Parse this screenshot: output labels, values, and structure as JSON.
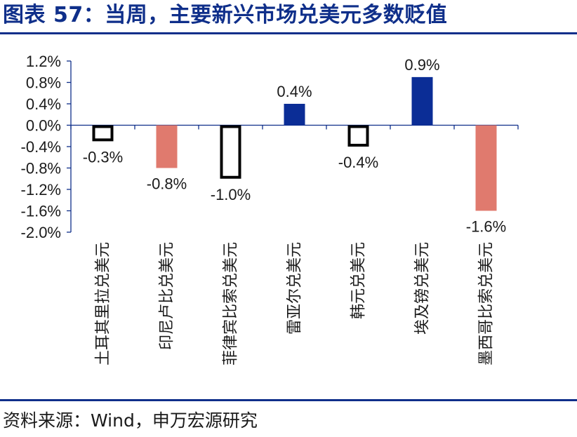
{
  "header": {
    "title": "图表 57：当周，主要新兴市场兑美元多数贬值"
  },
  "footer": {
    "source": "资料来源：Wind，申万宏源研究"
  },
  "chart_data": {
    "type": "bar",
    "title": "当周，主要新兴市场兑美元多数贬值",
    "xlabel": "",
    "ylabel": "",
    "ylim": [
      -2.0,
      1.2
    ],
    "yticks": [
      1.2,
      0.8,
      0.4,
      0.0,
      -0.4,
      -0.8,
      -1.2,
      -1.6,
      -2.0
    ],
    "ytick_labels": [
      "1.2%",
      "0.8%",
      "0.4%",
      "0.0%",
      "-0.4%",
      "-0.8%",
      "-1.2%",
      "-1.6%",
      "-2.0%"
    ],
    "grid": false,
    "legend": "none",
    "categories": [
      "土耳其里拉兑美元",
      "印尼卢比兑美元",
      "菲律宾比索兑美元",
      "雷亚尔兑美元",
      "韩元兑美元",
      "埃及镑兑美元",
      "墨西哥比索兑美元"
    ],
    "values": [
      -0.3,
      -0.8,
      -1.0,
      0.4,
      -0.4,
      0.9,
      -1.6
    ],
    "data_labels": [
      "-0.3%",
      "-0.8%",
      "-1.0%",
      "0.4%",
      "-0.4%",
      "0.9%",
      "-1.6%"
    ],
    "bar_styles": [
      "outline",
      "salmon",
      "outline",
      "navy",
      "outline",
      "navy",
      "salmon"
    ],
    "colors": {
      "navy": "#0b2d96",
      "salmon": "#e07a6e",
      "outline": "#000000",
      "axis": "#0f2f8a",
      "text": "#1a1a1a"
    }
  }
}
